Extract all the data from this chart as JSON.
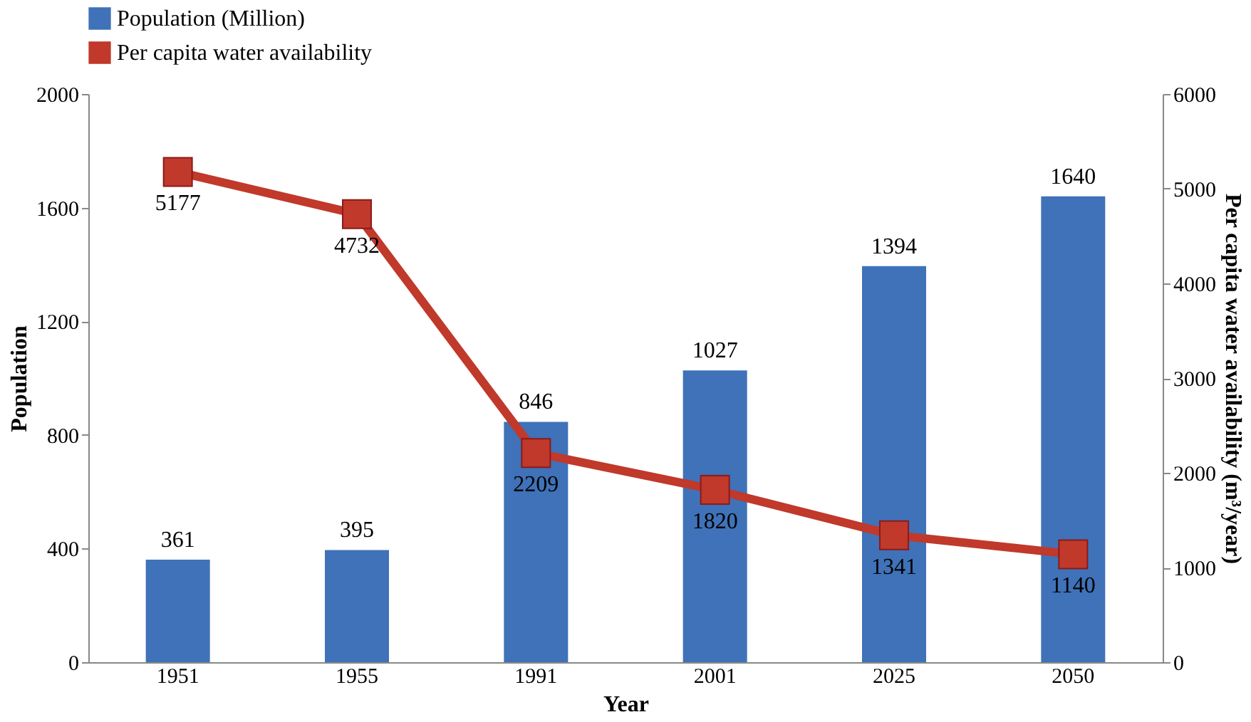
{
  "chart_data": {
    "type": "bar",
    "categories": [
      "1951",
      "1955",
      "1991",
      "2001",
      "2025",
      "2050"
    ],
    "xlabel": "Year",
    "ylabel": "Population",
    "y2label": "Per capita water availability  (m³/year)",
    "series": [
      {
        "name": "Population (Million)",
        "color": "#3f72b8",
        "values": [
          361,
          395,
          846,
          1027,
          1394,
          1640
        ]
      },
      {
        "name": "Per capita water availability",
        "type": "line",
        "axis": "y2",
        "color": "#c0392b",
        "values": [
          5177,
          4732,
          2209,
          1820,
          1341,
          1140
        ]
      }
    ],
    "ylim": [
      0,
      2000
    ],
    "yticks": [
      0,
      400,
      800,
      1200,
      1600,
      2000
    ],
    "y2lim": [
      0,
      6000
    ],
    "y2ticks": [
      0,
      1000,
      2000,
      3000,
      4000,
      5000,
      6000
    ],
    "data_labels": true,
    "legend": "top",
    "marker": "square",
    "line_style": "solid",
    "grid": false
  }
}
